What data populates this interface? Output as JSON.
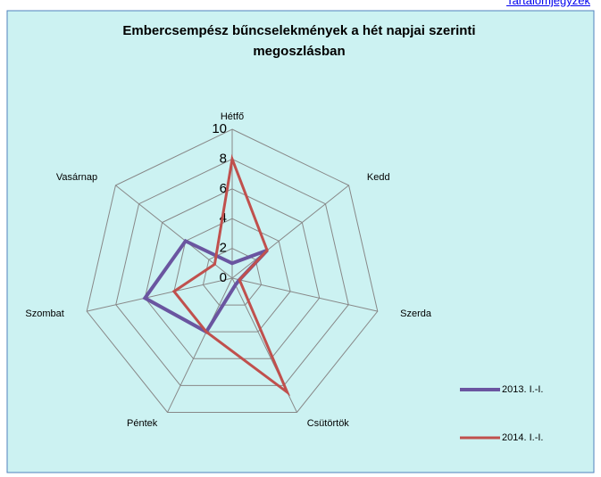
{
  "link": "Tartalomjegyzék",
  "chart_data": {
    "type": "radar",
    "title": [
      "Embercsempész bűncselekmények a hét napjai szerinti",
      "megoszlásban"
    ],
    "categories": [
      "Hétfő",
      "Kedd",
      "Szerda",
      "Csütörtök",
      "Péntek",
      "Szombat",
      "Vasárnap"
    ],
    "series": [
      {
        "name": "2013. I.-I.",
        "color": "#6a55a0",
        "values": [
          1,
          3,
          0.5,
          0.5,
          4,
          6,
          4
        ]
      },
      {
        "name": "2014. I.-I.",
        "color": "#c0504d",
        "values": [
          8,
          3,
          0.5,
          8.5,
          4,
          4,
          1.5
        ]
      }
    ],
    "ylim": [
      0,
      10
    ],
    "yticks": [
      0,
      2,
      4,
      6,
      8,
      10
    ],
    "grid": true,
    "legend": "right"
  }
}
